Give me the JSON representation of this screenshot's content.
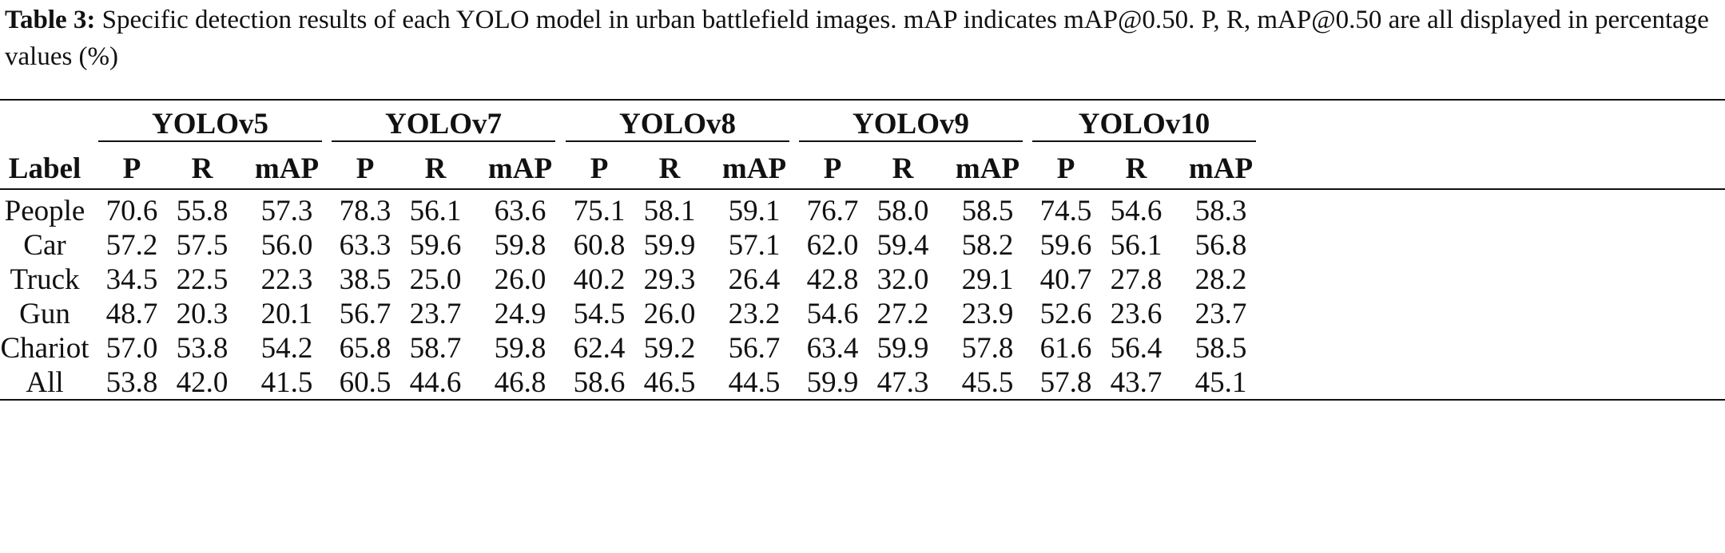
{
  "caption": {
    "label": "Table 3:",
    "text": " Specific detection results of each YOLO model in urban battlefield images. mAP indicates mAP@0.50. P, R, mAP@0.50 are all displayed in percentage values (%)"
  },
  "table": {
    "label_header": "Label",
    "groups": [
      "YOLOv5",
      "YOLOv7",
      "YOLOv8",
      "YOLOv9",
      "YOLOv10"
    ],
    "metrics": [
      "P",
      "R",
      "mAP"
    ],
    "rows": [
      {
        "label": "People",
        "values": [
          "70.6",
          "55.8",
          "57.3",
          "78.3",
          "56.1",
          "63.6",
          "75.1",
          "58.1",
          "59.1",
          "76.7",
          "58.0",
          "58.5",
          "74.5",
          "54.6",
          "58.3"
        ]
      },
      {
        "label": "Car",
        "values": [
          "57.2",
          "57.5",
          "56.0",
          "63.3",
          "59.6",
          "59.8",
          "60.8",
          "59.9",
          "57.1",
          "62.0",
          "59.4",
          "58.2",
          "59.6",
          "56.1",
          "56.8"
        ]
      },
      {
        "label": "Truck",
        "values": [
          "34.5",
          "22.5",
          "22.3",
          "38.5",
          "25.0",
          "26.0",
          "40.2",
          "29.3",
          "26.4",
          "42.8",
          "32.0",
          "29.1",
          "40.7",
          "27.8",
          "28.2"
        ]
      },
      {
        "label": "Gun",
        "values": [
          "48.7",
          "20.3",
          "20.1",
          "56.7",
          "23.7",
          "24.9",
          "54.5",
          "26.0",
          "23.2",
          "54.6",
          "27.2",
          "23.9",
          "52.6",
          "23.6",
          "23.7"
        ]
      },
      {
        "label": "Chariot",
        "values": [
          "57.0",
          "53.8",
          "54.2",
          "65.8",
          "58.7",
          "59.8",
          "62.4",
          "59.2",
          "56.7",
          "63.4",
          "59.9",
          "57.8",
          "61.6",
          "56.4",
          "58.5"
        ]
      },
      {
        "label": "All",
        "values": [
          "53.8",
          "42.0",
          "41.5",
          "60.5",
          "44.6",
          "46.8",
          "58.6",
          "46.5",
          "44.5",
          "59.9",
          "47.3",
          "45.5",
          "57.8",
          "43.7",
          "45.1"
        ]
      }
    ]
  }
}
